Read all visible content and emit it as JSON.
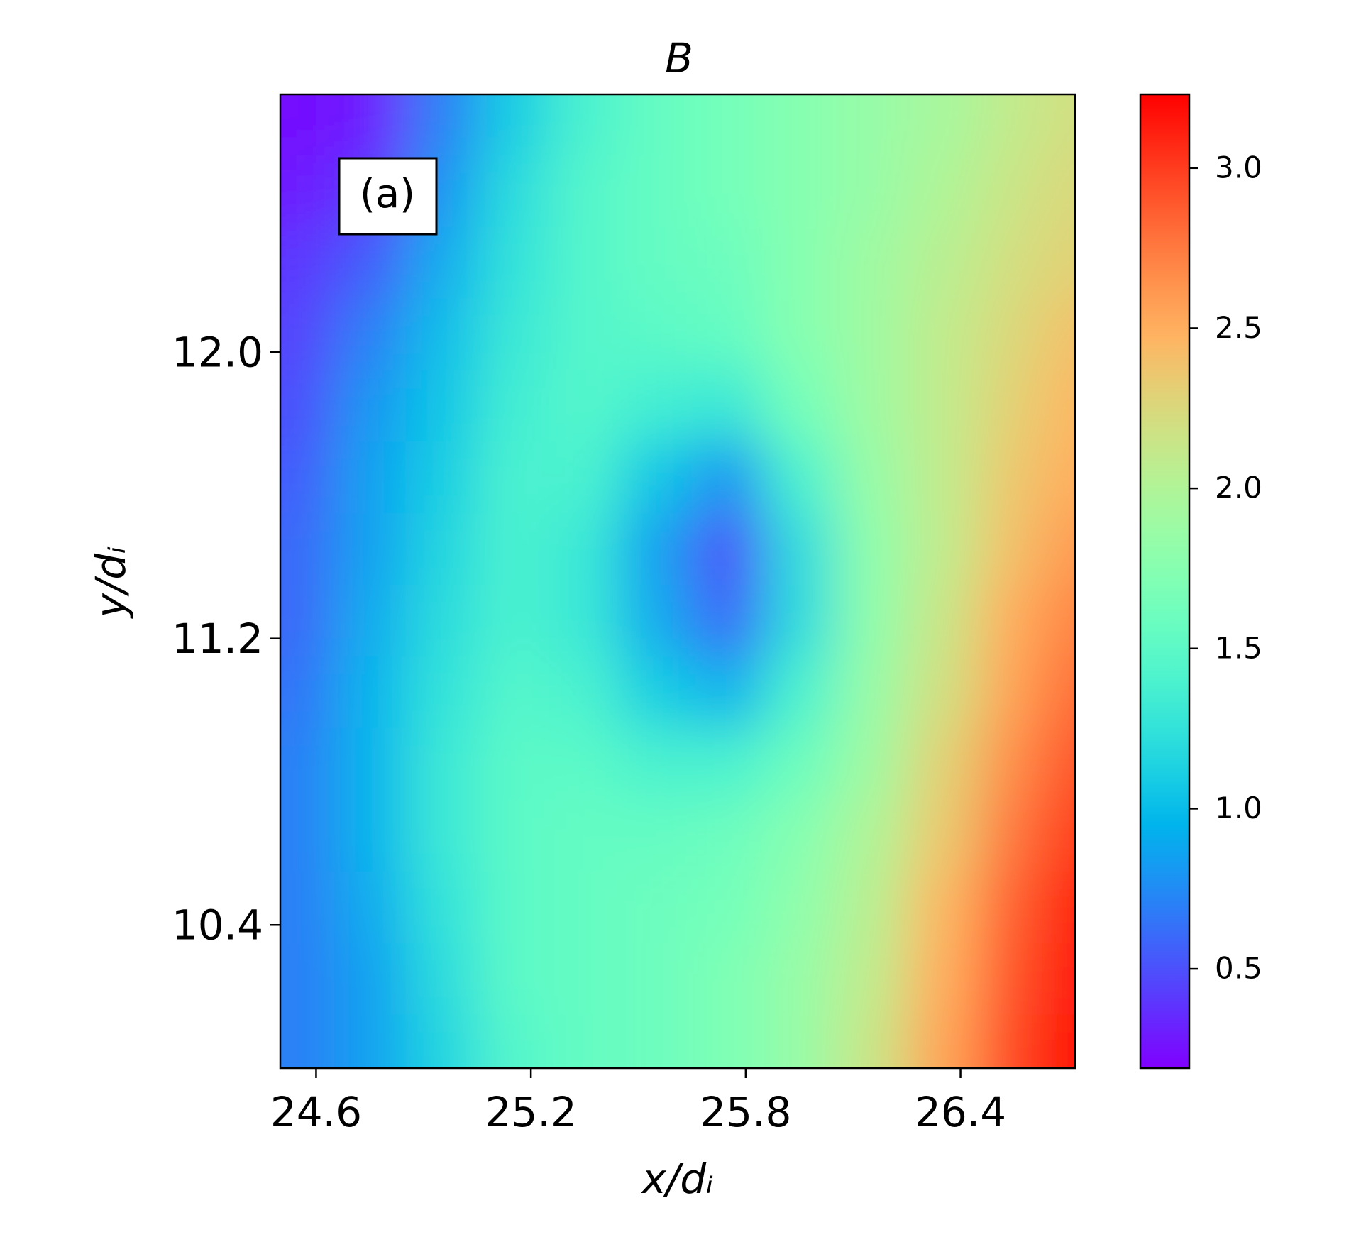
{
  "chart_data": {
    "type": "heatmap",
    "title": "B",
    "panel_label": "(a)",
    "x_label": "x/dᵢ",
    "y_label": "y/dᵢ",
    "colormap": "rainbow",
    "xlim": [
      24.5,
      26.72
    ],
    "ylim": [
      10.0,
      12.72
    ],
    "xticks": [
      24.6,
      25.2,
      25.8,
      26.4
    ],
    "yticks": [
      10.4,
      11.2,
      {
        "value": 12,
        "label": "12.0"
      }
    ],
    "clim": [
      0.19,
      3.23
    ],
    "cticks": [
      0.5,
      {
        "value": 1,
        "label": "1.0"
      },
      1.5,
      {
        "value": 2,
        "label": "2.0"
      },
      2.5,
      {
        "value": 3,
        "label": "3.0"
      }
    ],
    "x": [
      24.55,
      24.75,
      24.95,
      25.15,
      25.35,
      25.55,
      25.75,
      25.95,
      26.15,
      26.35,
      26.55,
      26.7
    ],
    "y": [
      12.65,
      12.45,
      12.25,
      12.05,
      11.85,
      11.65,
      11.45,
      11.25,
      11.05,
      10.85,
      10.65,
      10.45,
      10.25,
      10.05
    ],
    "z": [
      [
        0.25,
        0.3,
        0.7,
        1.1,
        1.4,
        1.55,
        1.65,
        1.75,
        1.85,
        1.95,
        2.1,
        2.2
      ],
      [
        0.3,
        0.4,
        0.8,
        1.2,
        1.45,
        1.55,
        1.65,
        1.75,
        1.85,
        2.0,
        2.15,
        2.25
      ],
      [
        0.4,
        0.55,
        0.9,
        1.25,
        1.45,
        1.55,
        1.6,
        1.75,
        1.9,
        2.05,
        2.2,
        2.3
      ],
      [
        0.45,
        0.7,
        1.0,
        1.3,
        1.45,
        1.5,
        1.55,
        1.75,
        1.9,
        2.1,
        2.25,
        2.4
      ],
      [
        0.5,
        0.8,
        1.05,
        1.35,
        1.45,
        1.35,
        1.3,
        1.65,
        1.9,
        2.1,
        2.3,
        2.45
      ],
      [
        0.55,
        0.85,
        1.1,
        1.4,
        1.4,
        1.05,
        0.8,
        1.4,
        1.85,
        2.1,
        2.35,
        2.5
      ],
      [
        0.6,
        0.85,
        1.15,
        1.4,
        1.3,
        0.85,
        0.5,
        1.2,
        1.8,
        2.1,
        2.4,
        2.6
      ],
      [
        0.6,
        0.9,
        1.2,
        1.4,
        1.3,
        0.9,
        0.6,
        1.2,
        1.8,
        2.15,
        2.5,
        2.7
      ],
      [
        0.65,
        0.95,
        1.25,
        1.45,
        1.4,
        1.1,
        0.95,
        1.4,
        1.85,
        2.2,
        2.55,
        2.8
      ],
      [
        0.7,
        0.95,
        1.3,
        1.5,
        1.5,
        1.4,
        1.4,
        1.6,
        1.9,
        2.3,
        2.65,
        2.9
      ],
      [
        0.7,
        0.95,
        1.3,
        1.5,
        1.55,
        1.55,
        1.6,
        1.75,
        2.0,
        2.35,
        2.75,
        3.0
      ],
      [
        0.7,
        0.9,
        1.25,
        1.5,
        1.55,
        1.6,
        1.65,
        1.8,
        2.05,
        2.45,
        2.85,
        3.1
      ],
      [
        0.7,
        0.85,
        1.2,
        1.5,
        1.55,
        1.6,
        1.7,
        1.85,
        2.1,
        2.5,
        2.9,
        3.15
      ],
      [
        0.7,
        0.85,
        1.15,
        1.45,
        1.55,
        1.6,
        1.7,
        1.85,
        2.15,
        2.55,
        2.95,
        3.2
      ]
    ]
  }
}
